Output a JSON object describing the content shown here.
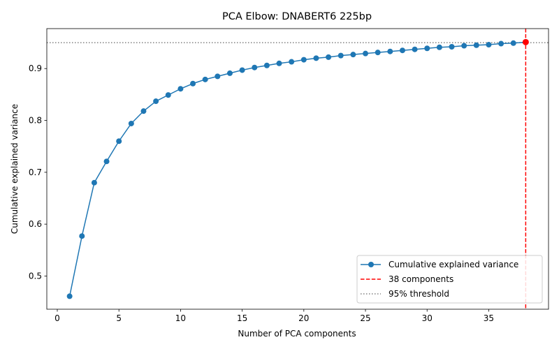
{
  "chart_data": {
    "type": "line",
    "title": "PCA Elbow: DNABERT6 225bp",
    "xlabel": "Number of PCA components",
    "ylabel": "Cumulative explained variance",
    "xlim": [
      -0.85,
      39.85
    ],
    "ylim": [
      0.436,
      0.977
    ],
    "xticks": [
      0,
      5,
      10,
      15,
      20,
      25,
      30,
      35
    ],
    "yticks": [
      0.5,
      0.6,
      0.7,
      0.8,
      0.9
    ],
    "grid": false,
    "legend_position": "lower-right",
    "series": [
      {
        "name": "Cumulative explained variance",
        "color": "#1f77b4",
        "marker": "circle",
        "x": [
          1,
          2,
          3,
          4,
          5,
          6,
          7,
          8,
          9,
          10,
          11,
          12,
          13,
          14,
          15,
          16,
          17,
          18,
          19,
          20,
          21,
          22,
          23,
          24,
          25,
          26,
          27,
          28,
          29,
          30,
          31,
          32,
          33,
          34,
          35,
          36,
          37,
          38
        ],
        "y": [
          0.461,
          0.577,
          0.68,
          0.721,
          0.76,
          0.794,
          0.818,
          0.837,
          0.849,
          0.861,
          0.871,
          0.879,
          0.885,
          0.891,
          0.897,
          0.902,
          0.906,
          0.91,
          0.913,
          0.917,
          0.92,
          0.922,
          0.925,
          0.927,
          0.929,
          0.931,
          0.933,
          0.935,
          0.937,
          0.939,
          0.941,
          0.942,
          0.944,
          0.945,
          0.946,
          0.948,
          0.949,
          0.951
        ]
      }
    ],
    "vline": {
      "name": "38 components",
      "x": 38,
      "color": "#ff0000",
      "style": "dashed"
    },
    "hline": {
      "name": "95% threshold",
      "y": 0.95,
      "color": "#808080",
      "style": "dotted"
    },
    "highlight_point": {
      "x": 38,
      "y": 0.951,
      "color": "#ff0000"
    }
  }
}
